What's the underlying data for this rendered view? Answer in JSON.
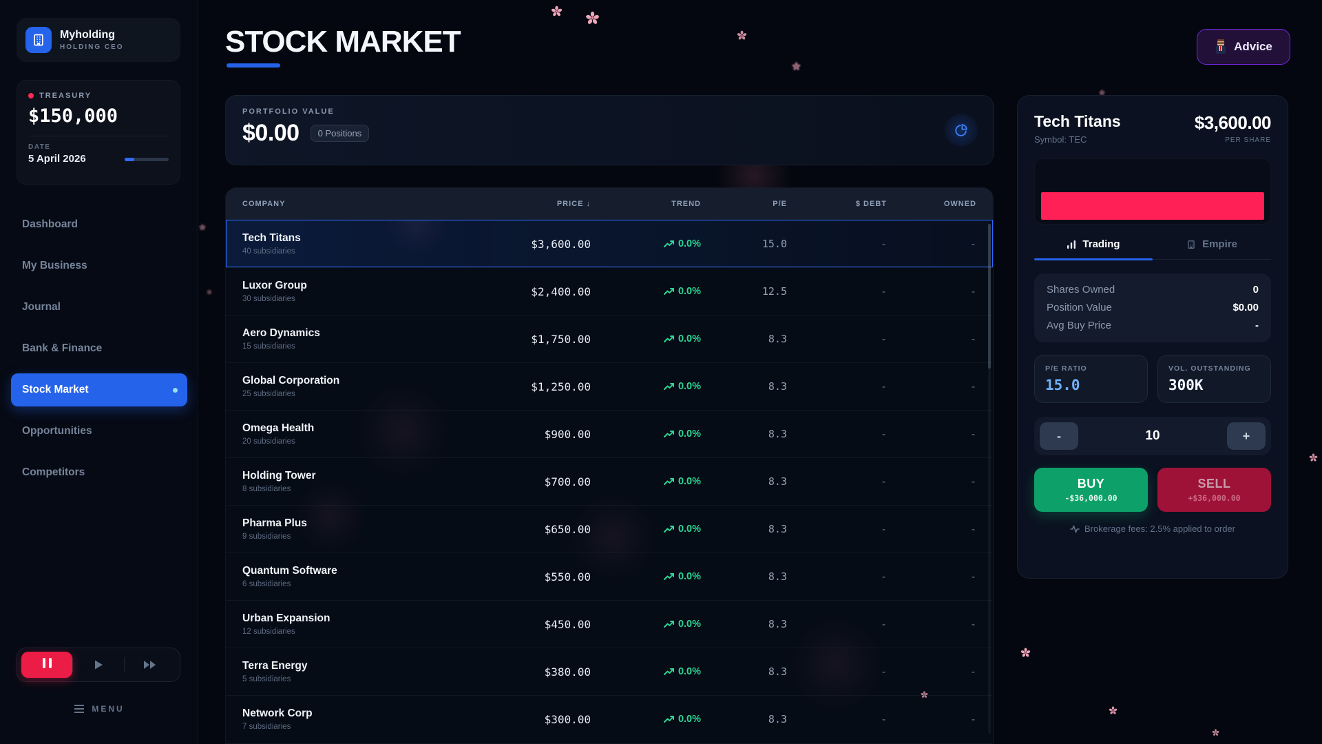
{
  "sidebar": {
    "logo": {
      "name": "Myholding",
      "subtitle": "HOLDING CEO",
      "icon": "building-icon"
    },
    "treasury": {
      "label": "TREASURY",
      "value": "$150,000"
    },
    "date": {
      "label": "DATE",
      "value": "5 April 2026"
    },
    "nav": [
      {
        "label": "Dashboard",
        "active": false
      },
      {
        "label": "My Business",
        "active": false
      },
      {
        "label": "Journal",
        "active": false
      },
      {
        "label": "Bank & Finance",
        "active": false
      },
      {
        "label": "Stock Market",
        "active": true
      },
      {
        "label": "Opportunities",
        "active": false
      },
      {
        "label": "Competitors",
        "active": false
      }
    ],
    "playback": {
      "pause_icon": "pause-icon",
      "play_icon": "play-icon",
      "fast_forward_icon": "fast-forward-icon"
    },
    "menu_label": "MENU"
  },
  "header": {
    "title": "STOCK MARKET",
    "advice_label": "Advice"
  },
  "portfolio": {
    "label": "PORTFOLIO VALUE",
    "value": "$0.00",
    "positions_badge": "0 Positions",
    "chart_icon": "pie-chart-icon"
  },
  "table": {
    "columns": {
      "company": "COMPANY",
      "price": "PRICE",
      "sort_arrow": "↓",
      "trend": "TREND",
      "pe": "P/E",
      "debt_symbol": "$",
      "debt": "DEBT",
      "owned": "OWNED"
    },
    "rows": [
      {
        "name": "Tech Titans",
        "subsidiaries": "40 subsidiaries",
        "price": "$3,600.00",
        "trend": "0.0%",
        "pe": "15.0",
        "debt": "-",
        "owned": "-",
        "selected": true
      },
      {
        "name": "Luxor Group",
        "subsidiaries": "30 subsidiaries",
        "price": "$2,400.00",
        "trend": "0.0%",
        "pe": "12.5",
        "debt": "-",
        "owned": "-",
        "selected": false
      },
      {
        "name": "Aero Dynamics",
        "subsidiaries": "15 subsidiaries",
        "price": "$1,750.00",
        "trend": "0.0%",
        "pe": "8.3",
        "debt": "-",
        "owned": "-",
        "selected": false
      },
      {
        "name": "Global Corporation",
        "subsidiaries": "25 subsidiaries",
        "price": "$1,250.00",
        "trend": "0.0%",
        "pe": "8.3",
        "debt": "-",
        "owned": "-",
        "selected": false
      },
      {
        "name": "Omega Health",
        "subsidiaries": "20 subsidiaries",
        "price": "$900.00",
        "trend": "0.0%",
        "pe": "8.3",
        "debt": "-",
        "owned": "-",
        "selected": false
      },
      {
        "name": "Holding Tower",
        "subsidiaries": "8 subsidiaries",
        "price": "$700.00",
        "trend": "0.0%",
        "pe": "8.3",
        "debt": "-",
        "owned": "-",
        "selected": false
      },
      {
        "name": "Pharma Plus",
        "subsidiaries": "9 subsidiaries",
        "price": "$650.00",
        "trend": "0.0%",
        "pe": "8.3",
        "debt": "-",
        "owned": "-",
        "selected": false
      },
      {
        "name": "Quantum Software",
        "subsidiaries": "6 subsidiaries",
        "price": "$550.00",
        "trend": "0.0%",
        "pe": "8.3",
        "debt": "-",
        "owned": "-",
        "selected": false
      },
      {
        "name": "Urban Expansion",
        "subsidiaries": "12 subsidiaries",
        "price": "$450.00",
        "trend": "0.0%",
        "pe": "8.3",
        "debt": "-",
        "owned": "-",
        "selected": false
      },
      {
        "name": "Terra Energy",
        "subsidiaries": "5 subsidiaries",
        "price": "$380.00",
        "trend": "0.0%",
        "pe": "8.3",
        "debt": "-",
        "owned": "-",
        "selected": false
      },
      {
        "name": "Network Corp",
        "subsidiaries": "7 subsidiaries",
        "price": "$300.00",
        "trend": "0.0%",
        "pe": "8.3",
        "debt": "-",
        "owned": "-",
        "selected": false
      }
    ]
  },
  "detail": {
    "name": "Tech Titans",
    "symbol": "Symbol: TEC",
    "price": "$3,600.00",
    "per_share": "PER SHARE",
    "chart_bar_color": "#ff2056",
    "tabs": {
      "trading": "Trading",
      "empire": "Empire"
    },
    "stats": [
      {
        "label": "Shares Owned",
        "value": "0"
      },
      {
        "label": "Position Value",
        "value": "$0.00"
      },
      {
        "label": "Avg Buy Price",
        "value": "-"
      }
    ],
    "pe_box": {
      "label": "P/E RATIO",
      "value": "15.0"
    },
    "vol_box": {
      "label": "VOL. OUTSTANDING",
      "value": "300K"
    },
    "quantity": {
      "minus": "-",
      "value": "10",
      "plus": "+"
    },
    "buy": {
      "label": "BUY",
      "amount": "-$36,000.00"
    },
    "sell": {
      "label": "SELL",
      "amount": "+$36,000.00"
    },
    "fees_note": "Brokerage fees: 2.5% applied to order"
  },
  "colors": {
    "accent_blue": "#2563eb",
    "alert_red": "#fb2c55",
    "trend_green": "#2fd593",
    "buy_green": "#0da169",
    "sell_maroon": "#9e1238",
    "bar_red": "#ff2056"
  }
}
